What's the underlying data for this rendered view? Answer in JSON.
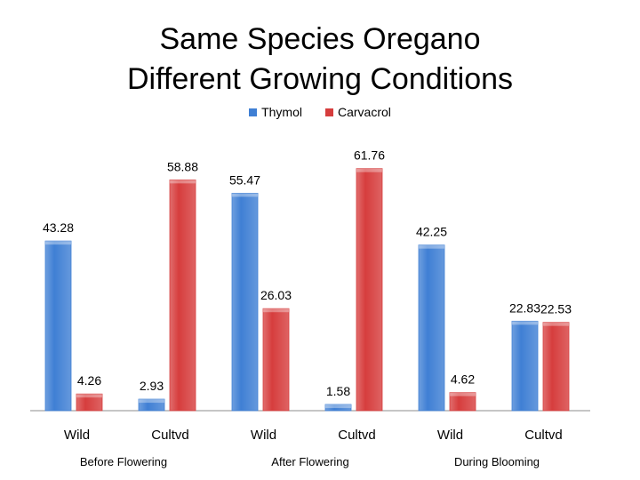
{
  "chart_data": {
    "type": "bar",
    "title_lines": [
      "Same Species Oregano",
      "Different Growing Conditions"
    ],
    "categories": [
      "Wild",
      "Cultvd",
      "Wild",
      "Cultvd",
      "Wild",
      "Cultvd"
    ],
    "groups": [
      "Before Flowering",
      "After Flowering",
      "During Blooming"
    ],
    "series": [
      {
        "name": "Thymol",
        "color": "#3f7fd4",
        "values": [
          43.28,
          2.93,
          55.47,
          1.58,
          42.25,
          22.83
        ]
      },
      {
        "name": "Carvacrol",
        "color": "#d63d3d",
        "values": [
          4.26,
          58.88,
          26.03,
          61.76,
          4.62,
          22.53
        ]
      }
    ],
    "ylim": [
      0,
      70
    ],
    "grid": false,
    "legend_position": "top-center"
  }
}
